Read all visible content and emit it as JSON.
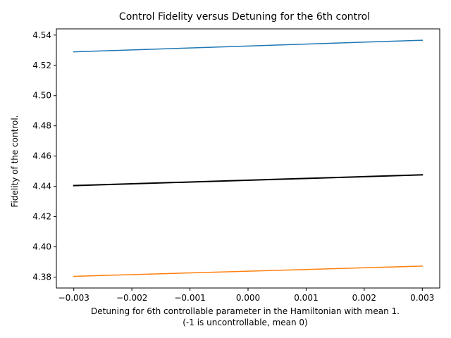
{
  "chart_data": {
    "type": "line",
    "title": "Control Fidelity versus Detuning for the 6th control",
    "xlabel": [
      "Detuning for 6th controllable parameter in the Hamiltonian with mean 1.",
      "(-1 is uncontrollable, mean 0)"
    ],
    "ylabel": "Fidelity of the control.",
    "xlim": [
      -0.0033,
      0.0033
    ],
    "ylim": [
      4.3728,
      4.5441
    ],
    "x_ticks": [
      -0.003,
      -0.002,
      -0.001,
      0.0,
      0.001,
      0.002,
      0.003
    ],
    "x_tick_labels": [
      "−0.003",
      "−0.002",
      "−0.001",
      "0.000",
      "0.001",
      "0.002",
      "0.003"
    ],
    "y_ticks": [
      4.38,
      4.4,
      4.42,
      4.44,
      4.46,
      4.48,
      4.5,
      4.52,
      4.54
    ],
    "y_tick_labels": [
      "4.38",
      "4.40",
      "4.42",
      "4.44",
      "4.46",
      "4.48",
      "4.50",
      "4.52",
      "4.54"
    ],
    "grid": false,
    "legend": false,
    "series": [
      {
        "color": "#1f77b4",
        "width": 1.5,
        "x": [
          -0.003,
          0.003
        ],
        "y": [
          4.5289,
          4.5366
        ]
      },
      {
        "color": "#000000",
        "width": 2.0,
        "x": [
          -0.003,
          0.003
        ],
        "y": [
          4.4405,
          4.4476
        ]
      },
      {
        "color": "#ff7f0e",
        "width": 1.5,
        "x": [
          -0.003,
          0.003
        ],
        "y": [
          4.3805,
          4.3873
        ]
      }
    ]
  }
}
